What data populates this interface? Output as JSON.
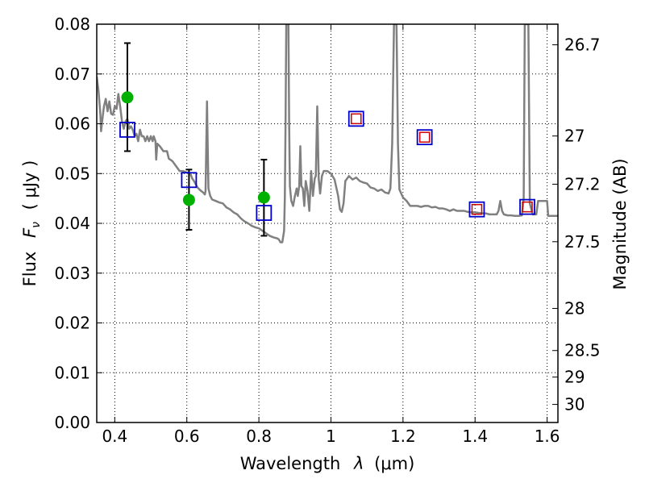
{
  "chart_data": {
    "type": "scatter",
    "xlabel_prefix": "Wavelength",
    "xlabel_symbol": "λ",
    "xlabel_unit": "(μm)",
    "ylabel_prefix": "Flux",
    "ylabel_symbol": "F",
    "ylabel_subscript": "ν",
    "ylabel_unit": "( μJy )",
    "y2label": "Magnitude (AB)",
    "xlim": [
      0.35,
      1.63
    ],
    "ylim": [
      0.0,
      0.08
    ],
    "xticks": [
      0.4,
      0.6,
      0.8,
      1.0,
      1.2,
      1.4,
      1.6
    ],
    "xtick_labels": [
      "0.4",
      "0.6",
      "0.8",
      "1",
      "1.2",
      "1.4",
      "1.6"
    ],
    "yticks": [
      0.0,
      0.01,
      0.02,
      0.03,
      0.04,
      0.05,
      0.06,
      0.07,
      0.08
    ],
    "ytick_labels": [
      "0.00",
      "0.01",
      "0.02",
      "0.03",
      "0.04",
      "0.05",
      "0.06",
      "0.07",
      "0.08"
    ],
    "y2ticks": [
      {
        "mag": 26.7,
        "label": "26.7"
      },
      {
        "mag": 27.0,
        "label": "27"
      },
      {
        "mag": 27.2,
        "label": "27.2"
      },
      {
        "mag": 27.5,
        "label": "27.5"
      },
      {
        "mag": 28.0,
        "label": "28"
      },
      {
        "mag": 28.5,
        "label": "28.5"
      },
      {
        "mag": 29.0,
        "label": "29"
      },
      {
        "mag": 30.0,
        "label": "30"
      }
    ],
    "grid": true,
    "colors": {
      "model": "#808080",
      "observed": "#00b000",
      "errorbar": "#000000",
      "synthetic_box": "#0000cc",
      "synthetic_inner": "#cc0000"
    },
    "series": [
      {
        "role": "model-sed",
        "style": "line",
        "points": [
          [
            0.35,
            0.0695
          ],
          [
            0.355,
            0.0665
          ],
          [
            0.36,
            0.062
          ],
          [
            0.362,
            0.0585
          ],
          [
            0.365,
            0.0605
          ],
          [
            0.37,
            0.0635
          ],
          [
            0.375,
            0.065
          ],
          [
            0.38,
            0.0625
          ],
          [
            0.385,
            0.0645
          ],
          [
            0.39,
            0.062
          ],
          [
            0.395,
            0.0618
          ],
          [
            0.4,
            0.0635
          ],
          [
            0.405,
            0.063
          ],
          [
            0.41,
            0.066
          ],
          [
            0.415,
            0.0635
          ],
          [
            0.42,
            0.0605
          ],
          [
            0.425,
            0.059
          ],
          [
            0.43,
            0.0605
          ],
          [
            0.435,
            0.061
          ],
          [
            0.44,
            0.059
          ],
          [
            0.445,
            0.0595
          ],
          [
            0.45,
            0.0588
          ],
          [
            0.455,
            0.0575
          ],
          [
            0.46,
            0.058
          ],
          [
            0.465,
            0.0565
          ],
          [
            0.47,
            0.0588
          ],
          [
            0.475,
            0.0575
          ],
          [
            0.48,
            0.0575
          ],
          [
            0.485,
            0.0565
          ],
          [
            0.49,
            0.0575
          ],
          [
            0.495,
            0.0565
          ],
          [
            0.5,
            0.0575
          ],
          [
            0.505,
            0.0565
          ],
          [
            0.508,
            0.0575
          ],
          [
            0.513,
            0.0565
          ],
          [
            0.515,
            0.0528
          ],
          [
            0.518,
            0.056
          ],
          [
            0.525,
            0.0555
          ],
          [
            0.535,
            0.0545
          ],
          [
            0.545,
            0.0545
          ],
          [
            0.55,
            0.053
          ],
          [
            0.56,
            0.0525
          ],
          [
            0.57,
            0.0515
          ],
          [
            0.58,
            0.0505
          ],
          [
            0.59,
            0.0505
          ],
          [
            0.6,
            0.0502
          ],
          [
            0.61,
            0.05
          ],
          [
            0.615,
            0.049
          ],
          [
            0.62,
            0.0485
          ],
          [
            0.625,
            0.0478
          ],
          [
            0.63,
            0.0472
          ],
          [
            0.635,
            0.0468
          ],
          [
            0.64,
            0.0465
          ],
          [
            0.645,
            0.0462
          ],
          [
            0.65,
            0.0458
          ],
          [
            0.652,
            0.0465
          ],
          [
            0.654,
            0.0555
          ],
          [
            0.656,
            0.0645
          ],
          [
            0.658,
            0.0555
          ],
          [
            0.66,
            0.047
          ],
          [
            0.665,
            0.0455
          ],
          [
            0.67,
            0.0448
          ],
          [
            0.68,
            0.0445
          ],
          [
            0.69,
            0.0442
          ],
          [
            0.7,
            0.044
          ],
          [
            0.71,
            0.0432
          ],
          [
            0.72,
            0.0428
          ],
          [
            0.73,
            0.0422
          ],
          [
            0.74,
            0.0418
          ],
          [
            0.75,
            0.041
          ],
          [
            0.76,
            0.0404
          ],
          [
            0.77,
            0.04
          ],
          [
            0.78,
            0.0395
          ],
          [
            0.79,
            0.0392
          ],
          [
            0.8,
            0.039
          ],
          [
            0.81,
            0.0385
          ],
          [
            0.82,
            0.038
          ],
          [
            0.83,
            0.0375
          ],
          [
            0.84,
            0.0372
          ],
          [
            0.85,
            0.037
          ],
          [
            0.855,
            0.0368
          ],
          [
            0.86,
            0.0362
          ],
          [
            0.865,
            0.0362
          ],
          [
            0.87,
            0.0385
          ],
          [
            0.872,
            0.045
          ],
          [
            0.874,
            0.06
          ],
          [
            0.876,
            0.08
          ],
          [
            0.882,
            0.08
          ],
          [
            0.884,
            0.06
          ],
          [
            0.886,
            0.0475
          ],
          [
            0.89,
            0.0445
          ],
          [
            0.895,
            0.0435
          ],
          [
            0.9,
            0.0455
          ],
          [
            0.905,
            0.047
          ],
          [
            0.908,
            0.0455
          ],
          [
            0.912,
            0.0475
          ],
          [
            0.915,
            0.0555
          ],
          [
            0.918,
            0.0475
          ],
          [
            0.922,
            0.047
          ],
          [
            0.926,
            0.0435
          ],
          [
            0.93,
            0.0485
          ],
          [
            0.935,
            0.0465
          ],
          [
            0.94,
            0.0425
          ],
          [
            0.945,
            0.0505
          ],
          [
            0.95,
            0.0455
          ],
          [
            0.955,
            0.049
          ],
          [
            0.958,
            0.0495
          ],
          [
            0.96,
            0.0565
          ],
          [
            0.962,
            0.0635
          ],
          [
            0.964,
            0.0565
          ],
          [
            0.966,
            0.049
          ],
          [
            0.97,
            0.046
          ],
          [
            0.975,
            0.0495
          ],
          [
            0.98,
            0.0505
          ],
          [
            0.99,
            0.0505
          ],
          [
            1.0,
            0.05
          ],
          [
            1.01,
            0.0488
          ],
          [
            1.02,
            0.0455
          ],
          [
            1.025,
            0.0428
          ],
          [
            1.03,
            0.0423
          ],
          [
            1.035,
            0.044
          ],
          [
            1.04,
            0.0485
          ],
          [
            1.05,
            0.0495
          ],
          [
            1.06,
            0.0488
          ],
          [
            1.07,
            0.0492
          ],
          [
            1.08,
            0.0485
          ],
          [
            1.09,
            0.0482
          ],
          [
            1.1,
            0.048
          ],
          [
            1.11,
            0.0472
          ],
          [
            1.12,
            0.047
          ],
          [
            1.13,
            0.0465
          ],
          [
            1.14,
            0.0468
          ],
          [
            1.15,
            0.0462
          ],
          [
            1.16,
            0.046
          ],
          [
            1.165,
            0.047
          ],
          [
            1.17,
            0.056
          ],
          [
            1.175,
            0.08
          ],
          [
            1.182,
            0.08
          ],
          [
            1.186,
            0.056
          ],
          [
            1.19,
            0.0468
          ],
          [
            1.2,
            0.0452
          ],
          [
            1.21,
            0.0445
          ],
          [
            1.22,
            0.0435
          ],
          [
            1.23,
            0.0435
          ],
          [
            1.24,
            0.0435
          ],
          [
            1.25,
            0.0433
          ],
          [
            1.26,
            0.0435
          ],
          [
            1.27,
            0.0435
          ],
          [
            1.28,
            0.0432
          ],
          [
            1.29,
            0.0433
          ],
          [
            1.3,
            0.043
          ],
          [
            1.31,
            0.043
          ],
          [
            1.32,
            0.0428
          ],
          [
            1.33,
            0.0425
          ],
          [
            1.34,
            0.0428
          ],
          [
            1.35,
            0.0425
          ],
          [
            1.36,
            0.0425
          ],
          [
            1.37,
            0.0425
          ],
          [
            1.38,
            0.0423
          ],
          [
            1.39,
            0.0422
          ],
          [
            1.4,
            0.0422
          ],
          [
            1.41,
            0.0421
          ],
          [
            1.42,
            0.042
          ],
          [
            1.43,
            0.042
          ],
          [
            1.44,
            0.0418
          ],
          [
            1.45,
            0.0418
          ],
          [
            1.46,
            0.0418
          ],
          [
            1.465,
            0.0425
          ],
          [
            1.47,
            0.0445
          ],
          [
            1.475,
            0.0425
          ],
          [
            1.48,
            0.0418
          ],
          [
            1.49,
            0.0416
          ],
          [
            1.5,
            0.0416
          ],
          [
            1.51,
            0.0415
          ],
          [
            1.52,
            0.0415
          ],
          [
            1.53,
            0.0416
          ],
          [
            1.535,
            0.045
          ],
          [
            1.538,
            0.08
          ],
          [
            1.548,
            0.08
          ],
          [
            1.552,
            0.044
          ],
          [
            1.56,
            0.0418
          ],
          [
            1.57,
            0.0418
          ],
          [
            1.575,
            0.0445
          ],
          [
            1.58,
            0.0445
          ],
          [
            1.59,
            0.0445
          ],
          [
            1.595,
            0.0445
          ],
          [
            1.6,
            0.0445
          ],
          [
            1.603,
            0.0415
          ],
          [
            1.63,
            0.0415
          ]
        ]
      },
      {
        "role": "observed",
        "style": "filled-circle-with-errorbar",
        "points": [
          {
            "x": 0.435,
            "y": 0.0653,
            "err_low": 0.0545,
            "err_high": 0.0762
          },
          {
            "x": 0.606,
            "y": 0.0447,
            "err_low": 0.0387,
            "err_high": 0.0508
          },
          {
            "x": 0.814,
            "y": 0.0452,
            "err_low": 0.0375,
            "err_high": 0.0528
          }
        ]
      },
      {
        "role": "synthetic",
        "style": "open-square",
        "points": [
          {
            "x": 0.435,
            "y": 0.0588
          },
          {
            "x": 0.606,
            "y": 0.0487
          },
          {
            "x": 0.814,
            "y": 0.0421
          }
        ]
      },
      {
        "role": "synthetic-with-inner",
        "style": "open-square-with-inner",
        "points": [
          {
            "x": 1.07,
            "y": 0.061
          },
          {
            "x": 1.26,
            "y": 0.0573
          },
          {
            "x": 1.405,
            "y": 0.0428
          },
          {
            "x": 1.545,
            "y": 0.0433
          }
        ]
      }
    ]
  }
}
